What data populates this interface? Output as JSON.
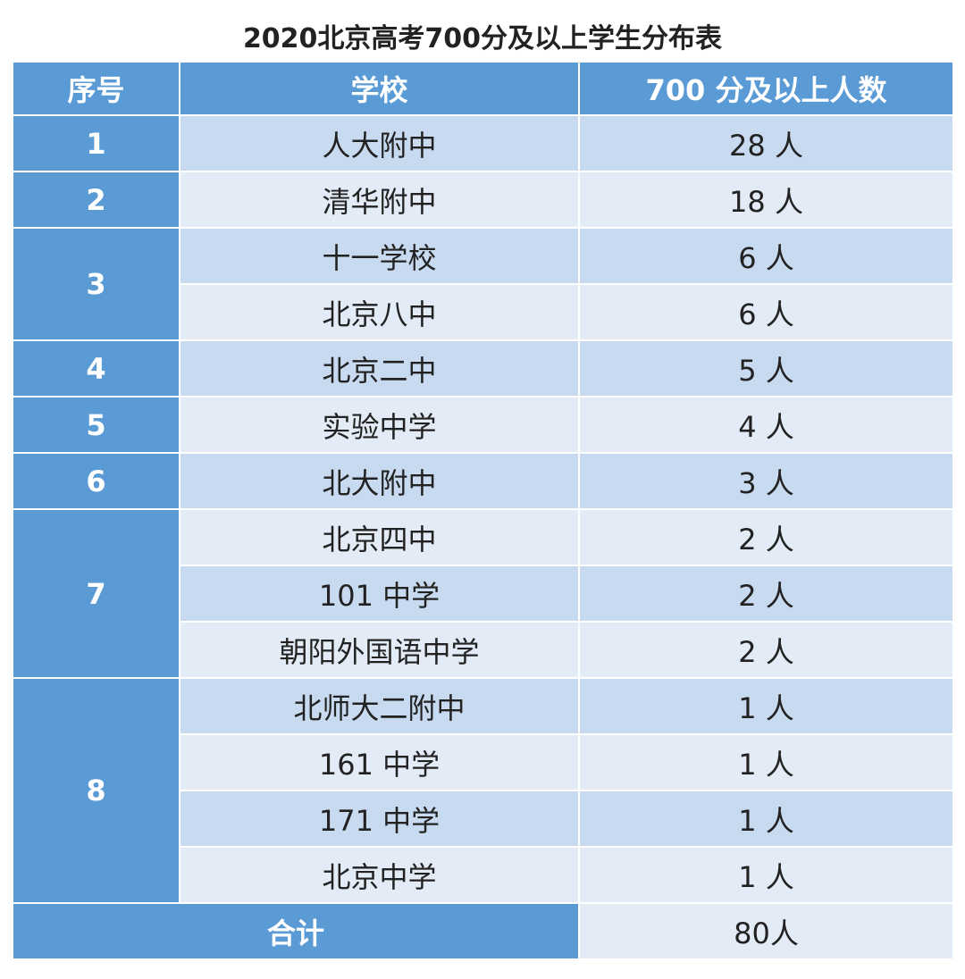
{
  "title": "2020北京高考700分及以上学生分布表",
  "table": {
    "headers": [
      "序号",
      "学校",
      "700 分及以上人数"
    ],
    "groups": [
      {
        "rank": "1",
        "rows": [
          {
            "school": "人大附中",
            "count": "28 人"
          }
        ]
      },
      {
        "rank": "2",
        "rows": [
          {
            "school": "清华附中",
            "count": "18 人"
          }
        ]
      },
      {
        "rank": "3",
        "rows": [
          {
            "school": "十一学校",
            "count": "6 人"
          },
          {
            "school": "北京八中",
            "count": "6 人"
          }
        ]
      },
      {
        "rank": "4",
        "rows": [
          {
            "school": "北京二中",
            "count": "5 人"
          }
        ]
      },
      {
        "rank": "5",
        "rows": [
          {
            "school": "实验中学",
            "count": "4 人"
          }
        ]
      },
      {
        "rank": "6",
        "rows": [
          {
            "school": "北大附中",
            "count": "3 人"
          }
        ]
      },
      {
        "rank": "7",
        "rows": [
          {
            "school": "北京四中",
            "count": "2 人"
          },
          {
            "school": "101 中学",
            "count": "2 人"
          },
          {
            "school": "朝阳外国语中学",
            "count": "2 人"
          }
        ]
      },
      {
        "rank": "8",
        "rows": [
          {
            "school": "北师大二附中",
            "count": "1 人"
          },
          {
            "school": "161 中学",
            "count": "1 人"
          },
          {
            "school": "171 中学",
            "count": "1 人"
          },
          {
            "school": "北京中学",
            "count": "1 人"
          }
        ]
      }
    ],
    "total": {
      "label": "合计",
      "value": "80人"
    }
  }
}
